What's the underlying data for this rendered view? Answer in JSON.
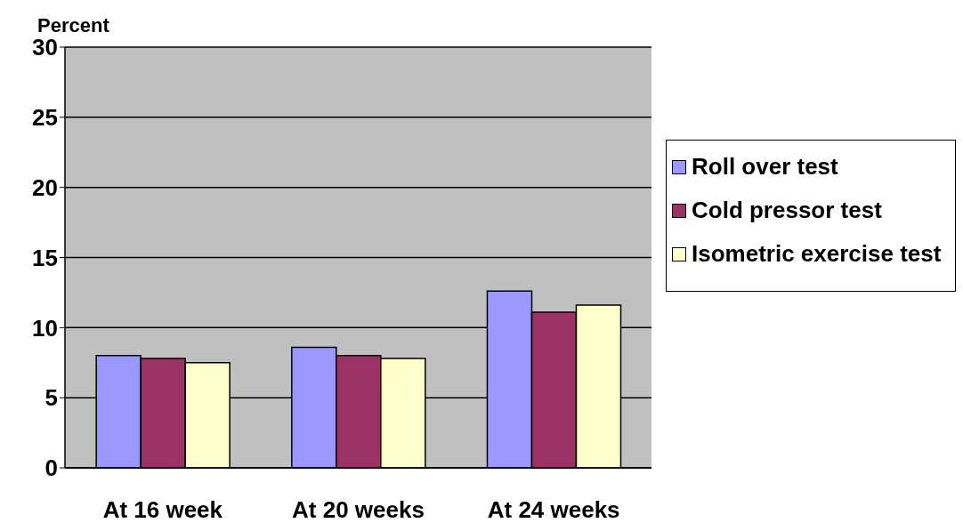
{
  "chart_data": {
    "type": "bar",
    "ylabel": "Percent",
    "categories": [
      "At 16 week",
      "At 20 weeks",
      "At 24 weeks"
    ],
    "series": [
      {
        "name": "Roll over test",
        "color": "#9999ff",
        "values": [
          8.0,
          8.6,
          12.6
        ]
      },
      {
        "name": "Cold pressor test",
        "color": "#993366",
        "values": [
          7.8,
          8.0,
          11.1
        ]
      },
      {
        "name": "Isometric exercise test",
        "color": "#ffffcc",
        "values": [
          7.5,
          7.8,
          11.6
        ]
      }
    ],
    "ylim": [
      0,
      30
    ],
    "yticks": [
      0,
      5,
      10,
      15,
      20,
      25,
      30
    ],
    "grid": "y",
    "legend": "right"
  }
}
